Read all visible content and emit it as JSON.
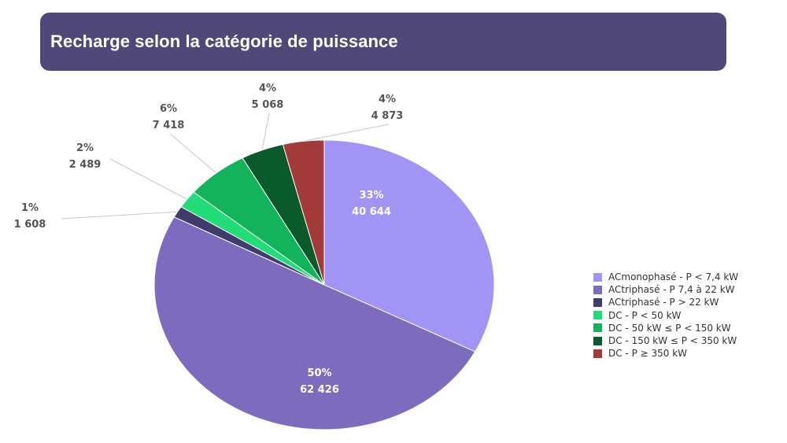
{
  "title": "Recharge selon la catégorie de puissance",
  "colors": {
    "header_bg": "#504879",
    "label_dark": "#555555",
    "label_light": "#ffffff",
    "leader": "#c8c8c8"
  },
  "chart_data": {
    "type": "pie",
    "title": "Recharge selon la catégorie de puissance",
    "start_angle_deg": 0,
    "direction": "clockwise",
    "slices": [
      {
        "name": "ACmonophasé - P < 7,4 kW",
        "value": 40644,
        "value_label": "40 644",
        "percent_label": "33%",
        "color": "#a294f4",
        "label_inside": true
      },
      {
        "name": "ACtriphasé - P 7,4 à 22 kW",
        "value": 62426,
        "value_label": "62 426",
        "percent_label": "50%",
        "color": "#7d6cbd",
        "label_inside": true
      },
      {
        "name": "ACtriphasé - P > 22 kW",
        "value": 1608,
        "value_label": "1 608",
        "percent_label": "1%",
        "color": "#3f3b6c",
        "label_inside": false
      },
      {
        "name": "DC - P < 50 kW",
        "value": 2489,
        "value_label": "2 489",
        "percent_label": "2%",
        "color": "#22dd77",
        "label_inside": false
      },
      {
        "name": "DC - 50 kW ≤ P < 150 kW",
        "value": 7418,
        "value_label": "7 418",
        "percent_label": "6%",
        "color": "#13b35b",
        "label_inside": false
      },
      {
        "name": "DC - 150 kW  ≤ P < 350 kW",
        "value": 5068,
        "value_label": "5 068",
        "percent_label": "4%",
        "color": "#0b5a2c",
        "label_inside": false
      },
      {
        "name": "DC - P ≥ 350 kW",
        "value": 4873,
        "value_label": "4 873",
        "percent_label": "4%",
        "color": "#a33a3a",
        "label_inside": false
      }
    ],
    "legend_position": "right"
  }
}
